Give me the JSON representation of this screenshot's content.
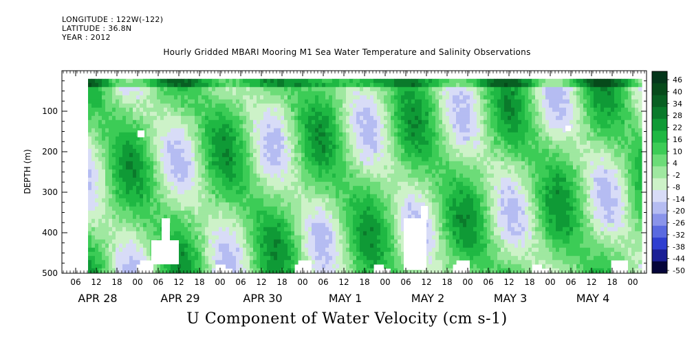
{
  "header": {
    "longitude": "LONGITUDE : 122W(-122)",
    "latitude": "LATITUDE : 36.8N",
    "year": "YEAR : 2012"
  },
  "title": "Hourly Gridded MBARI Mooring M1 Sea Water Temperature and Salinity Observations",
  "subtitle": "U Component of Water Velocity (cm s-1)",
  "chart_data": {
    "type": "heatmap",
    "title": "Hourly Gridded MBARI Mooring M1 Sea Water Temperature and Salinity Observations",
    "variable": "U Component of Water Velocity (cm s-1)",
    "xlabel": "",
    "ylabel": "DEPTH (m)",
    "x_range_hours": [
      0,
      168
    ],
    "ylim": [
      500,
      0
    ],
    "y_ticks": [
      "100",
      "200",
      "300",
      "400",
      "500"
    ],
    "y_tick_values": [
      100,
      200,
      300,
      400,
      500
    ],
    "x_hour_ticks": [
      "06",
      "12",
      "18",
      "00",
      "06",
      "12",
      "18",
      "00",
      "06",
      "12",
      "18",
      "00",
      "06",
      "12",
      "18",
      "00",
      "06",
      "12",
      "18",
      "00",
      "06",
      "12",
      "18",
      "00",
      "06",
      "12",
      "18",
      "00"
    ],
    "x_day_labels": [
      "APR 28",
      "APR 29",
      "APR 30",
      "MAY  1",
      "MAY  2",
      "MAY  3",
      "MAY  4"
    ],
    "colorbar": {
      "labels": [
        "46",
        "40",
        "34",
        "28",
        "22",
        "16",
        "10",
        "4",
        "-2",
        "-8",
        "-14",
        "-20",
        "-26",
        "-32",
        "-38",
        "-44",
        "-50"
      ],
      "min": -50,
      "max": 50,
      "colors": [
        "#05053a",
        "#1a1f95",
        "#2f3fd0",
        "#5a6ae0",
        "#8a94ea",
        "#b5bcf2",
        "#d8dcf7",
        "#cdf2c8",
        "#9fe8a0",
        "#6cdc78",
        "#3ccc56",
        "#1fb843",
        "#0f9a36",
        "#0a7a2b",
        "#085f22",
        "#064a1a",
        "#04361a"
      ]
    },
    "depth_range_observed": [
      20,
      490
    ],
    "pattern": "alternating vertical bands of positive (green) and negative (blue) velocity sloping across depth; near-surface layer predominantly positive"
  }
}
